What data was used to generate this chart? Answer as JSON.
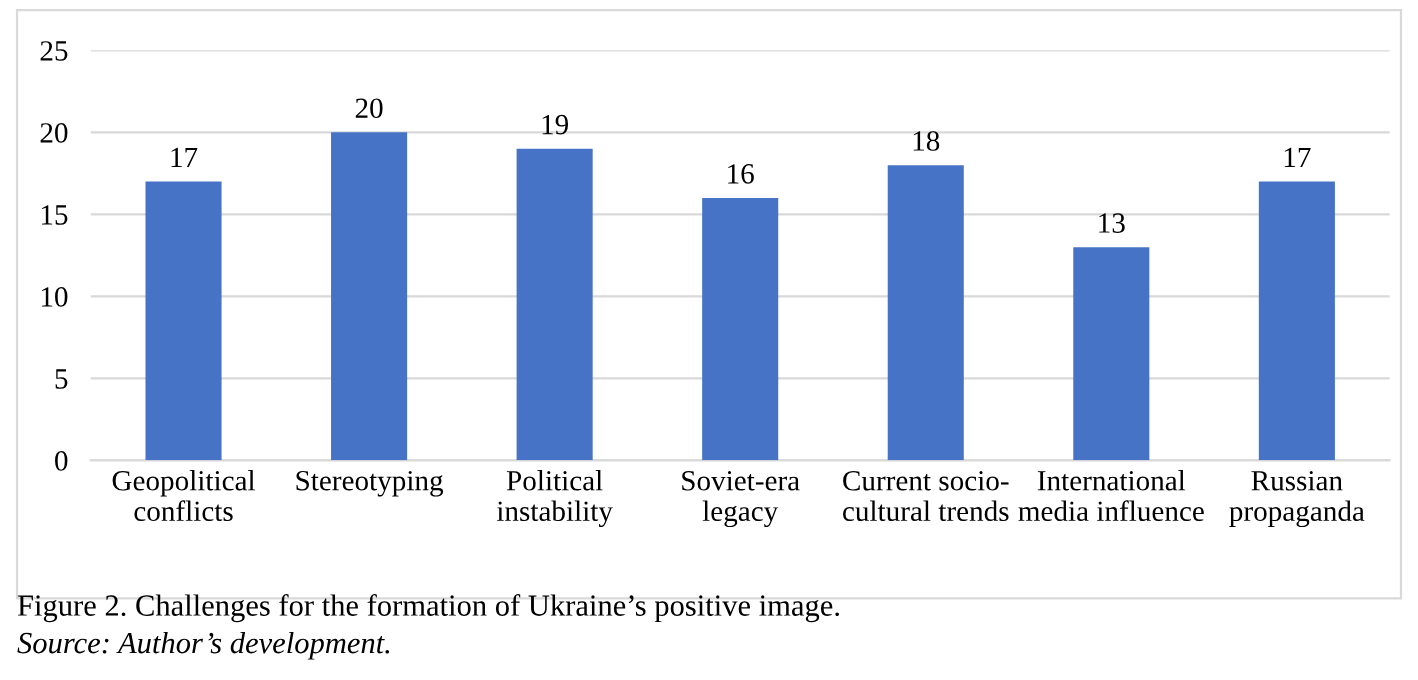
{
  "chart_data": {
    "type": "bar",
    "categories": [
      "Geopolitical conflicts",
      "Stereotyping",
      "Political instability",
      "Soviet-era legacy",
      "Current socio-cultural trends",
      "International media influence",
      "Russian propaganda"
    ],
    "values": [
      17,
      20,
      19,
      16,
      18,
      13,
      17
    ],
    "color": "#4673c6",
    "ylim": [
      0,
      25
    ],
    "yticks": [
      0,
      5,
      10,
      15,
      20,
      25
    ],
    "grid": "y",
    "data_labels": true,
    "annotations": [
      "Figure 2. Challenges for the formation of Ukraine’s positive image.",
      "Source: Author’s development."
    ]
  }
}
